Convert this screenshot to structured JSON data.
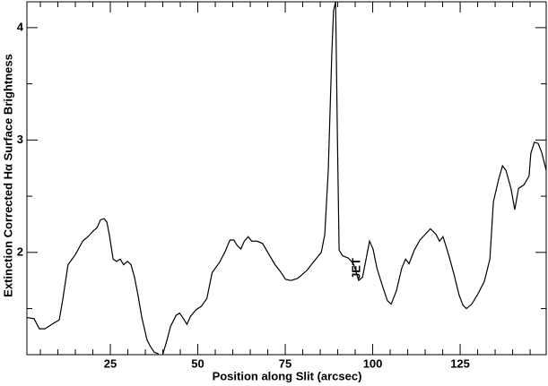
{
  "chart_data": {
    "type": "line",
    "xlabel": "Position along Slit (arcsec)",
    "ylabel": "Extinction Corrected Hα Surface Brightness",
    "annotation": "JET",
    "xlim": [
      1.15,
      149.6
    ],
    "ylim": [
      1.09,
      4.23
    ],
    "xticks": [
      25,
      50,
      75,
      100,
      125
    ],
    "yticks": [
      2,
      3,
      4
    ],
    "xminor": [
      5,
      10,
      15,
      20,
      30,
      35,
      40,
      45,
      55,
      60,
      65,
      70,
      80,
      85,
      90,
      95,
      105,
      110,
      115,
      120,
      130,
      135,
      140,
      145
    ],
    "yminor": [
      1.5,
      2.5,
      3.5
    ],
    "series": [
      {
        "color": "#000000",
        "x": [
          1.2,
          3.2,
          4.7,
          6.3,
          8.3,
          10.4,
          11.4,
          12.9,
          15.0,
          17.1,
          18.6,
          20.1,
          21.2,
          22.2,
          23.2,
          24.0,
          24.7,
          25.8,
          26.8,
          27.8,
          28.8,
          29.9,
          30.9,
          31.9,
          32.9,
          34.0,
          35.5,
          36.5,
          37.6,
          38.6,
          39.6,
          41.2,
          42.2,
          43.8,
          44.8,
          45.9,
          46.9,
          47.9,
          49.5,
          51.0,
          52.6,
          54.1,
          56.2,
          57.7,
          59.2,
          60.3,
          61.3,
          62.3,
          63.3,
          64.4,
          65.4,
          66.9,
          68.5,
          70.0,
          72.1,
          73.6,
          75.1,
          76.7,
          78.6,
          81.2,
          83.2,
          85.3,
          86.3,
          87.3,
          88.3,
          88.8,
          89.4,
          89.9,
          90.4,
          91.4,
          93.0,
          94.5,
          96.0,
          97.1,
          98.1,
          99.1,
          100.1,
          101.2,
          102.7,
          104.2,
          105.3,
          106.8,
          108.3,
          109.4,
          110.4,
          111.9,
          113.5,
          115.0,
          116.5,
          118.1,
          119.1,
          120.1,
          121.7,
          123.2,
          124.7,
          125.8,
          126.8,
          128.3,
          129.9,
          131.9,
          133.5,
          134.5,
          136.0,
          137.1,
          138.1,
          139.6,
          140.6,
          141.7,
          143.2,
          144.7,
          145.2,
          146.2,
          147.3,
          148.3,
          149.6
        ],
        "values": [
          1.42,
          1.41,
          1.32,
          1.32,
          1.36,
          1.4,
          1.58,
          1.89,
          1.98,
          2.1,
          2.14,
          2.19,
          2.22,
          2.29,
          2.3,
          2.27,
          2.16,
          1.94,
          1.92,
          1.94,
          1.89,
          1.92,
          1.89,
          1.78,
          1.62,
          1.42,
          1.22,
          1.16,
          1.11,
          1.1,
          1.05,
          1.22,
          1.34,
          1.44,
          1.46,
          1.41,
          1.36,
          1.43,
          1.49,
          1.52,
          1.59,
          1.82,
          1.91,
          2.0,
          2.11,
          2.11,
          2.06,
          2.03,
          2.1,
          2.14,
          2.1,
          2.1,
          2.08,
          2.0,
          1.89,
          1.83,
          1.76,
          1.75,
          1.77,
          1.84,
          1.92,
          2.0,
          2.16,
          2.73,
          3.76,
          4.15,
          4.23,
          3.05,
          2.02,
          1.97,
          1.95,
          1.9,
          1.75,
          1.78,
          1.94,
          2.1,
          2.03,
          1.86,
          1.71,
          1.57,
          1.54,
          1.66,
          1.86,
          1.94,
          1.9,
          2.02,
          2.11,
          2.16,
          2.21,
          2.16,
          2.1,
          2.14,
          1.98,
          1.81,
          1.62,
          1.53,
          1.5,
          1.54,
          1.62,
          1.74,
          1.94,
          2.45,
          2.65,
          2.77,
          2.73,
          2.56,
          2.38,
          2.57,
          2.6,
          2.68,
          2.88,
          2.98,
          2.97,
          2.89,
          2.73
        ]
      }
    ]
  }
}
